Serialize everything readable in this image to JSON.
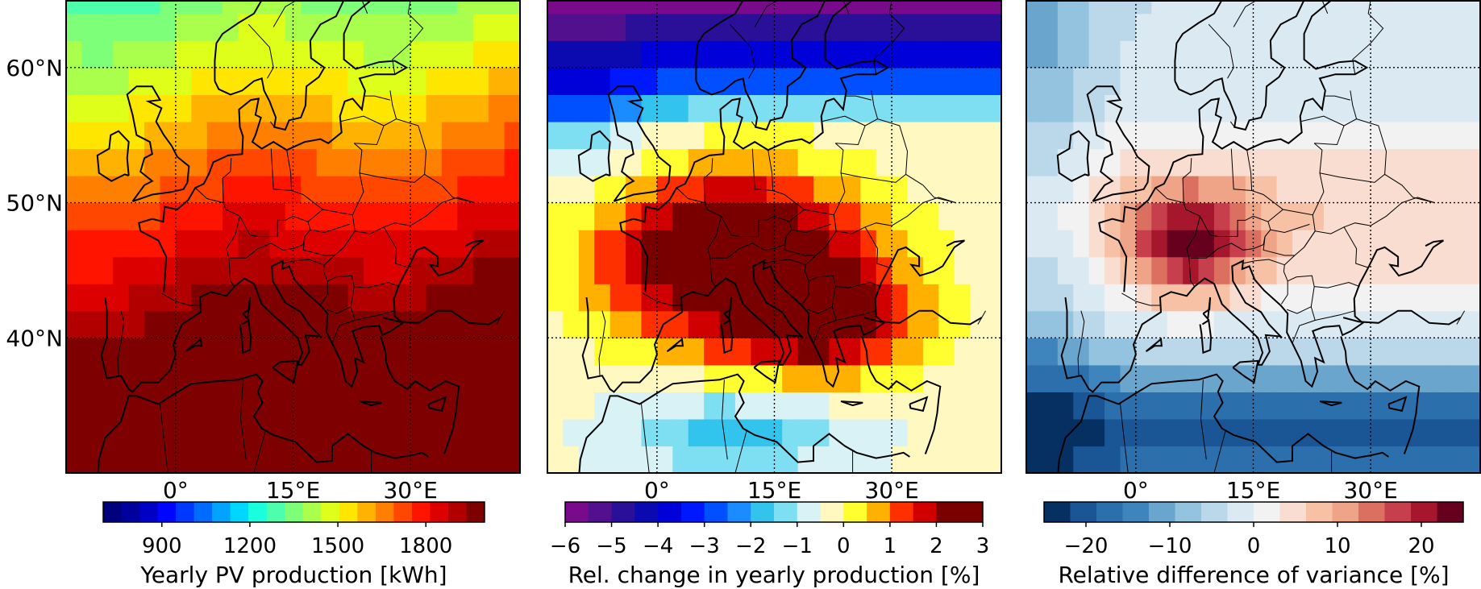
{
  "chart_data": [
    {
      "type": "heatmap",
      "panel": "left",
      "colormap": "jet",
      "xlim": [
        -14,
        44
      ],
      "ylim": [
        30,
        65
      ],
      "x_ticks": [
        0,
        15,
        30
      ],
      "x_tick_labels": [
        "0°",
        "15°E",
        "30°E"
      ],
      "y_ticks": [
        40,
        50,
        60
      ],
      "y_tick_labels": [
        "40°N",
        "50°N",
        "60°N"
      ],
      "gridlines": "dotted",
      "colorbar": {
        "label": "Yearly PV production [kWh]",
        "range": [
          700,
          2000
        ],
        "ticks": [
          900,
          1200,
          1500,
          1800
        ],
        "tick_labels": [
          "900",
          "1200",
          "1500",
          "1800"
        ],
        "levels": [
          "#00007f",
          "#00009d",
          "#0000c6",
          "#0005ff",
          "#0038ff",
          "#006bff",
          "#00a4ff",
          "#00d7ff",
          "#19ffde",
          "#4dffaa",
          "#7dff7a",
          "#aaff4d",
          "#deff19",
          "#ffe600",
          "#ffb200",
          "#ff7f00",
          "#ff4700",
          "#ff1400",
          "#dd0000",
          "#b20000",
          "#7f0000"
        ]
      }
    },
    {
      "type": "heatmap",
      "panel": "middle",
      "colormap": "diverging purple-blue-yellow-red",
      "xlim": [
        -14,
        44
      ],
      "ylim": [
        30,
        65
      ],
      "x_ticks": [
        0,
        15,
        30
      ],
      "x_tick_labels": [
        "0°",
        "15°E",
        "30°E"
      ],
      "gridlines": "dotted",
      "colorbar": {
        "label": "Rel. change in yearly production [%]",
        "range": [
          -6,
          3
        ],
        "ticks": [
          -6,
          -5,
          -4,
          -3,
          -2,
          -1,
          0,
          1,
          2,
          3
        ],
        "tick_labels": [
          "−6",
          "−5",
          "−4",
          "−3",
          "−2",
          "−1",
          "0",
          "1",
          "2",
          "3"
        ],
        "levels": [
          "#7a0a8c",
          "#52108e",
          "#2a0f99",
          "#0a0ab0",
          "#0000d8",
          "#0018ff",
          "#0050ff",
          "#1a8cff",
          "#33c4ee",
          "#7fdff2",
          "#d9f2f5",
          "#fff8c0",
          "#ffff30",
          "#ffb000",
          "#ff3000",
          "#d00000",
          "#7a0000",
          "#7a0000"
        ]
      }
    },
    {
      "type": "heatmap",
      "panel": "right",
      "colormap": "RdBu_r",
      "xlim": [
        -14,
        44
      ],
      "ylim": [
        30,
        65
      ],
      "x_ticks": [
        0,
        15,
        30
      ],
      "x_tick_labels": [
        "0°",
        "15°E",
        "30°E"
      ],
      "gridlines": "dotted",
      "colorbar": {
        "label": "Relative difference of variance [%]",
        "range": [
          -25,
          25
        ],
        "ticks": [
          -20,
          -10,
          0,
          10,
          20
        ],
        "tick_labels": [
          "−20",
          "−10",
          "0",
          "10",
          "20"
        ],
        "levels": [
          "#053061",
          "#1a5595",
          "#2c6fad",
          "#3f85bd",
          "#6aa5cd",
          "#93c3de",
          "#bad8e9",
          "#dbeaf2",
          "#f2f2f2",
          "#f9ddd0",
          "#f7c1a6",
          "#efa387",
          "#dc7060",
          "#c73e4c",
          "#a6172d",
          "#67001f"
        ]
      }
    }
  ]
}
